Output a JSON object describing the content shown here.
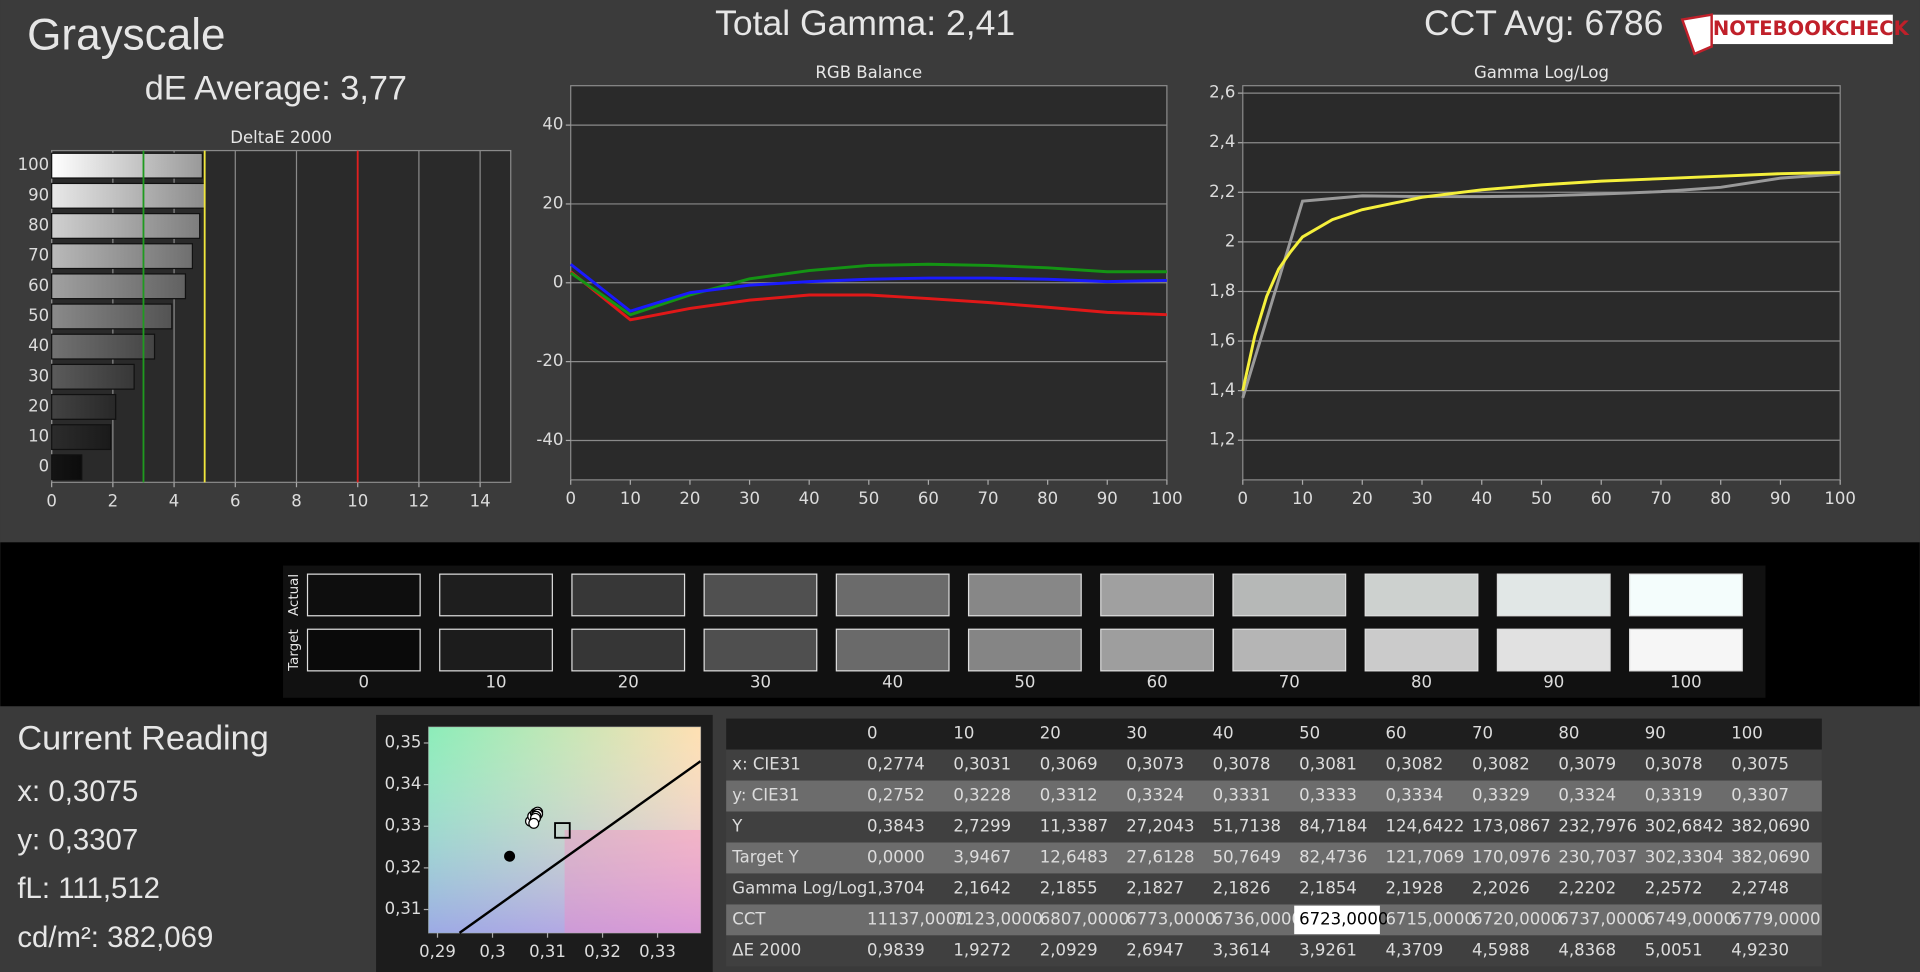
{
  "header": {
    "title": "Grayscale",
    "de_average": "dE Average: 3,77",
    "total_gamma": "Total Gamma: 2,41",
    "cct_avg": "CCT Avg: 6786",
    "logo": "NOTEBOOKCHECK"
  },
  "chart_data": [
    {
      "type": "bar",
      "orientation": "horizontal",
      "title": "DeltaE 2000",
      "categories": [
        "0",
        "10",
        "20",
        "30",
        "40",
        "50",
        "60",
        "70",
        "80",
        "90",
        "100"
      ],
      "values": [
        0.9839,
        1.9272,
        2.0929,
        2.6947,
        3.3614,
        3.9261,
        4.3709,
        4.5988,
        4.8368,
        5.0051,
        4.923
      ],
      "xlim": [
        0,
        15
      ],
      "xticks": [
        0,
        2,
        4,
        6,
        8,
        10,
        12,
        14
      ],
      "grid": "x",
      "reference_lines": [
        {
          "value": 3,
          "color": "#1f9a1f"
        },
        {
          "value": 5,
          "color": "#f0e63c"
        },
        {
          "value": 10,
          "color": "#e02020"
        }
      ]
    },
    {
      "type": "line",
      "title": "RGB Balance",
      "x": [
        0,
        10,
        20,
        30,
        40,
        50,
        60,
        70,
        80,
        90,
        100
      ],
      "xlim": [
        0,
        100
      ],
      "xticks": [
        0,
        10,
        20,
        30,
        40,
        50,
        60,
        70,
        80,
        90,
        100
      ],
      "ylim": [
        -50,
        50
      ],
      "yticks": [
        -40,
        -20,
        0,
        20,
        40
      ],
      "grid": "y",
      "series": [
        {
          "color": "#e01818",
          "values": [
            2.8,
            -9.4,
            -6.5,
            -4.4,
            -3.1,
            -3.1,
            -4,
            -5,
            -6.2,
            -7.5,
            -8.1
          ]
        },
        {
          "color": "#149414",
          "values": [
            2.5,
            -8.1,
            -3.1,
            1,
            3.1,
            4.4,
            4.7,
            4.4,
            3.8,
            2.8,
            2.8
          ]
        },
        {
          "color": "#1a1aff",
          "values": [
            4.7,
            -7.2,
            -2.5,
            -0.6,
            0.3,
            0.9,
            1.2,
            1.2,
            0.9,
            0.3,
            0.6
          ]
        }
      ]
    },
    {
      "type": "line",
      "title": "Gamma Log/Log",
      "x": [
        0,
        10,
        20,
        30,
        40,
        50,
        60,
        70,
        80,
        90,
        100
      ],
      "xlim": [
        0,
        100
      ],
      "xticks": [
        0,
        10,
        20,
        30,
        40,
        50,
        60,
        70,
        80,
        90,
        100
      ],
      "ylim": [
        1.04,
        2.63
      ],
      "yticks": [
        {
          "value": 1.2,
          "label": "1,2"
        },
        {
          "value": 1.4,
          "label": "1,4"
        },
        {
          "value": 1.6,
          "label": "1,6"
        },
        {
          "value": 1.8,
          "label": "1,8"
        },
        2,
        {
          "value": 2.2,
          "label": "2,2"
        },
        {
          "value": 2.4,
          "label": "2,4"
        },
        {
          "value": 2.6,
          "label": "2,6"
        }
      ],
      "grid": "y",
      "series": [
        {
          "color": "#9a9a9a",
          "values": [
            1.3704,
            2.1642,
            2.1855,
            2.1827,
            2.1826,
            2.1854,
            2.1928,
            2.2026,
            2.2202,
            2.2572,
            2.2748
          ]
        },
        {
          "color": "#f5f03c",
          "x": [
            0,
            2,
            4,
            6,
            8,
            10,
            15,
            20,
            30,
            40,
            50,
            60,
            70,
            80,
            90,
            100
          ],
          "values": [
            1.4,
            1.62,
            1.78,
            1.89,
            1.96,
            2.02,
            2.09,
            2.13,
            2.18,
            2.21,
            2.23,
            2.245,
            2.255,
            2.265,
            2.275,
            2.28
          ]
        }
      ]
    },
    {
      "type": "scatter",
      "xlim": [
        0.2884,
        0.3378
      ],
      "ylim": [
        0.3044,
        0.3538
      ],
      "xticks": [
        {
          "value": 0.29,
          "label": "0,29"
        },
        {
          "value": 0.3,
          "label": "0,3"
        },
        {
          "value": 0.31,
          "label": "0,31"
        },
        {
          "value": 0.32,
          "label": "0,32"
        },
        {
          "value": 0.33,
          "label": "0,33"
        }
      ],
      "yticks": [
        {
          "value": 0.31,
          "label": "0,31"
        },
        {
          "value": 0.32,
          "label": "0,32"
        },
        {
          "value": 0.33,
          "label": "0,33"
        },
        {
          "value": 0.34,
          "label": "0,34"
        },
        {
          "value": 0.35,
          "label": "0,35"
        }
      ],
      "points": {
        "x": [
          0.3031,
          0.3069,
          0.3073,
          0.3078,
          0.3081,
          0.3082,
          0.3082,
          0.3079,
          0.3078,
          0.3075
        ],
        "y": [
          0.3228,
          0.3312,
          0.3324,
          0.3331,
          0.3333,
          0.3334,
          0.3329,
          0.3324,
          0.3319,
          0.3307
        ]
      },
      "target": {
        "x": 0.3127,
        "y": 0.329
      },
      "locus": {
        "x": [
          0.294,
          0.3378
        ],
        "y": [
          0.3044,
          0.3456
        ]
      }
    }
  ],
  "swatches": {
    "row_labels": [
      "Actual",
      "Target"
    ],
    "levels": [
      "0",
      "10",
      "20",
      "30",
      "40",
      "50",
      "60",
      "70",
      "80",
      "90",
      "100"
    ],
    "actual_colors": [
      "#0e0e0e",
      "#1e1e1e",
      "#373737",
      "#505050",
      "#6b6b6b",
      "#878787",
      "#a0a0a0",
      "#b6b8b7",
      "#cdd1cf",
      "#e1e7e6",
      "#f4fdfc"
    ],
    "target_colors": [
      "#0a0a0a",
      "#1c1c1c",
      "#363636",
      "#4f4f4f",
      "#6a6a6a",
      "#858585",
      "#9e9e9e",
      "#b5b5b5",
      "#cbcbcb",
      "#e1e1e1",
      "#f6f6f6"
    ]
  },
  "current_reading": {
    "title": "Current Reading",
    "lines": [
      "x: 0,3075",
      "y: 0,3307",
      "fL: 111,512",
      "cd/m²: 382,069"
    ]
  },
  "table": {
    "header": [
      "0",
      "10",
      "20",
      "30",
      "40",
      "50",
      "60",
      "70",
      "80",
      "90",
      "100"
    ],
    "rows": [
      {
        "label": "x: CIE31",
        "cells": [
          "0,2774",
          "0,3031",
          "0,3069",
          "0,3073",
          "0,3078",
          "0,3081",
          "0,3082",
          "0,3082",
          "0,3079",
          "0,3078",
          "0,3075"
        ]
      },
      {
        "label": "y: CIE31",
        "cells": [
          "0,2752",
          "0,3228",
          "0,3312",
          "0,3324",
          "0,3331",
          "0,3333",
          "0,3334",
          "0,3329",
          "0,3324",
          "0,3319",
          "0,3307"
        ]
      },
      {
        "label": "Y",
        "cells": [
          "0,3843",
          "2,7299",
          "11,3387",
          "27,2043",
          "51,7138",
          "84,7184",
          "124,6422",
          "173,0867",
          "232,7976",
          "302,6842",
          "382,0690"
        ]
      },
      {
        "label": "Target Y",
        "cells": [
          "0,0000",
          "3,9467",
          "12,6483",
          "27,6128",
          "50,7649",
          "82,4736",
          "121,7069",
          "170,0976",
          "230,7037",
          "302,3304",
          "382,0690"
        ]
      },
      {
        "label": "Gamma Log/Log",
        "cells": [
          "1,3704",
          "2,1642",
          "2,1855",
          "2,1827",
          "2,1826",
          "2,1854",
          "2,1928",
          "2,2026",
          "2,2202",
          "2,2572",
          "2,2748"
        ]
      },
      {
        "label": "CCT",
        "cells": [
          "11137,0000",
          "7123,0000",
          "6807,0000",
          "6773,0000",
          "6736,0000",
          "6723,0000",
          "6715,0000",
          "6720,0000",
          "6737,0000",
          "6749,0000",
          "6779,0000"
        ]
      },
      {
        "label": "ΔE 2000",
        "cells": [
          "0,9839",
          "1,9272",
          "2,0929",
          "2,6947",
          "3,3614",
          "3,9261",
          "4,3709",
          "4,5988",
          "4,8368",
          "5,0051",
          "4,9230"
        ]
      }
    ]
  }
}
